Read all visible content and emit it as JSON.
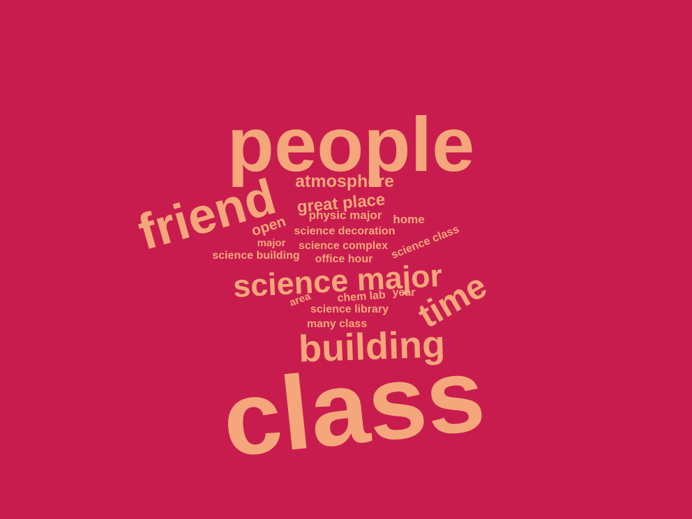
{
  "colors": {
    "background": "#c81c4e",
    "word": "#f5a77b"
  },
  "words": {
    "people": "people",
    "friend": "friend",
    "atmosphere": "atmosphere",
    "great_place": "great place",
    "open": "open",
    "physic_major": "physic major",
    "home": "home",
    "science_decoration": "science decoration",
    "major": "major",
    "science_complex": "science complex",
    "science_class": "science class",
    "science_building": "science building",
    "office_hour": "office hour",
    "science_major": "science major",
    "time": "time",
    "area": "area",
    "chem_lab": "chem lab",
    "year": "year",
    "science_library": "science library",
    "many_class": "many class",
    "building": "building",
    "class": "class"
  }
}
